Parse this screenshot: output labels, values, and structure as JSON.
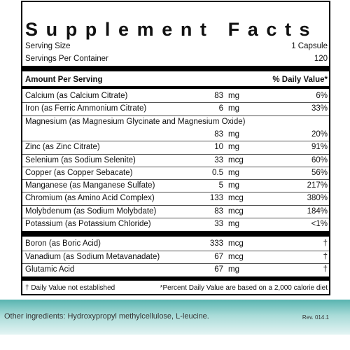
{
  "label": {
    "title": "Supplement Facts",
    "serving_size": {
      "label": "Serving Size",
      "value": "1 Capsule"
    },
    "servings_per_container": {
      "label": "Servings Per Container",
      "value": "120"
    },
    "header": {
      "amount": "Amount Per Serving",
      "dv": "% Daily Value*"
    },
    "group1": [
      {
        "name": "Calcium (as Calcium Citrate)",
        "amount": "83",
        "unit": "mg",
        "dv": "6%"
      },
      {
        "name": "Iron (as Ferric Ammonium Citrate)",
        "amount": "6",
        "unit": "mg",
        "dv": "33%"
      },
      {
        "name": "Magnesium (as Magnesium Glycinate and Magnesium Oxide)",
        "amount": "83",
        "unit": "mg",
        "dv": "20%"
      },
      {
        "name": "Zinc (as Zinc Citrate)",
        "amount": "10",
        "unit": "mg",
        "dv": "91%"
      },
      {
        "name": "Selenium (as Sodium Selenite)",
        "amount": "33",
        "unit": "mcg",
        "dv": "60%"
      },
      {
        "name": "Copper (as Copper Sebacate)",
        "amount": "0.5",
        "unit": "mg",
        "dv": "56%"
      },
      {
        "name": "Manganese (as Manganese Sulfate)",
        "amount": "5",
        "unit": "mg",
        "dv": "217%"
      },
      {
        "name": "Chromium (as Amino Acid Complex)",
        "amount": "133",
        "unit": "mcg",
        "dv": "380%"
      },
      {
        "name": "Molybdenum (as Sodium Molybdate)",
        "amount": "83",
        "unit": "mcg",
        "dv": "184%"
      },
      {
        "name": "Potassium (as Potassium Chloride)",
        "amount": "33",
        "unit": "mg",
        "dv": "<1%"
      }
    ],
    "group2": [
      {
        "name": "Boron (as Boric Acid)",
        "amount": "333",
        "unit": "mcg",
        "dv": "†"
      },
      {
        "name": "Vanadium (as Sodium Metavanadate)",
        "amount": "67",
        "unit": "mcg",
        "dv": "†"
      },
      {
        "name": "Glutamic Acid",
        "amount": "67",
        "unit": "mg",
        "dv": "†"
      }
    ],
    "footnote_dagger": "† Daily Value not established",
    "footnote_dv": "*Percent Daily Value are based on a 2,000 calorie diet"
  },
  "footer": {
    "other_ingredients": "Other ingredients: Hydroxypropyl methylcellulose, L-leucine.",
    "revision": "Rev. 014.1"
  }
}
